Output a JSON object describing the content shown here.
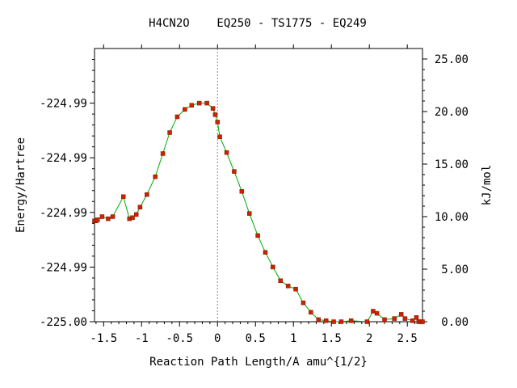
{
  "chart_data": {
    "type": "line",
    "title": "H4CN2O    EQ250 - TS1775 - EQ249",
    "xlabel": "Reaction Path Length/A amu^{1/2}",
    "ylabel_left": "Energy/Hartree",
    "ylabel_right": "kJ/mol",
    "xlim": [
      -1.62,
      2.7
    ],
    "ylim_kj": [
      0,
      26.0
    ],
    "x_ticks": [
      -1.5,
      -1,
      -0.5,
      0,
      0.5,
      1,
      1.5,
      2,
      2.5
    ],
    "x_tick_labels": [
      "-1.5",
      "-1",
      "-0.5",
      "0",
      "0.5",
      "1",
      "1.5",
      "2",
      "2.5"
    ],
    "left_ticks_kj": [
      0,
      5.2,
      10.4,
      15.6,
      20.8
    ],
    "left_tick_labels": [
      "-225.00",
      "-224.99",
      "-224.99",
      "-224.99",
      "-224.99"
    ],
    "right_ticks_kj": [
      0,
      5,
      10,
      15,
      20,
      25
    ],
    "right_tick_labels": [
      "0.00",
      "5.00",
      "10.00",
      "15.00",
      "20.00",
      "25.00"
    ],
    "ts_marker_x": 0.0,
    "line_color": "#00aa00",
    "marker_color": "#cc2200",
    "series": [
      {
        "x": [
          -1.62,
          -1.6,
          -1.58,
          -1.52,
          -1.44,
          -1.38,
          -1.24,
          -1.16,
          -1.12,
          -1.07,
          -1.02,
          -0.93,
          -0.82,
          -0.72,
          -0.63,
          -0.53,
          -0.43,
          -0.34,
          -0.24,
          -0.14,
          -0.06,
          -0.03,
          0.0,
          0.03,
          0.12,
          0.22,
          0.32,
          0.42,
          0.53,
          0.63,
          0.73,
          0.83,
          0.93,
          1.03,
          1.13,
          1.23,
          1.33,
          1.43,
          1.53,
          1.63,
          1.76,
          1.97,
          2.05,
          2.1,
          2.2,
          2.33,
          2.42,
          2.47,
          2.57,
          2.62,
          2.65,
          2.68,
          2.7
        ],
        "y": [
          9.6,
          9.6,
          9.7,
          10.0,
          9.8,
          10.0,
          11.9,
          9.8,
          9.9,
          10.2,
          10.9,
          12.1,
          13.8,
          16.0,
          18.0,
          19.5,
          20.2,
          20.6,
          20.8,
          20.8,
          20.3,
          19.7,
          19.0,
          17.6,
          16.1,
          14.3,
          12.4,
          10.3,
          8.2,
          6.6,
          5.2,
          3.9,
          3.4,
          3.1,
          1.8,
          0.9,
          0.2,
          0.1,
          0.0,
          0.0,
          0.1,
          0.0,
          1.0,
          0.8,
          0.2,
          0.3,
          0.7,
          0.3,
          0.1,
          0.4,
          0.0,
          0.0,
          0.0
        ]
      }
    ]
  }
}
